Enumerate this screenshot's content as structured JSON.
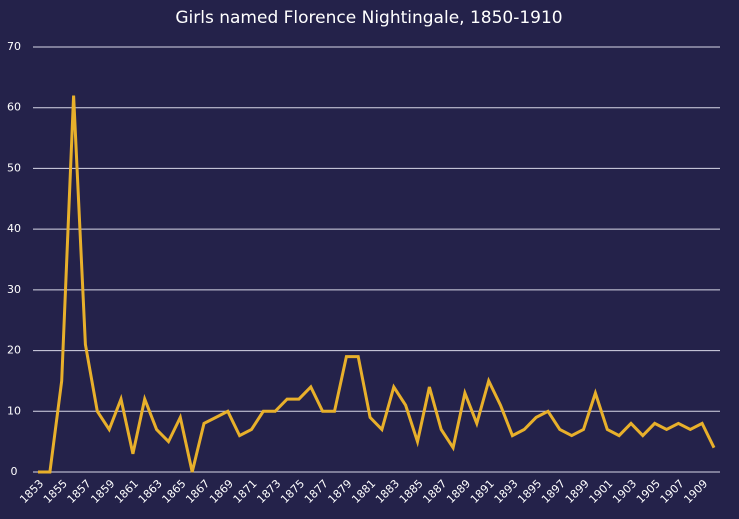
{
  "chart_data": {
    "type": "line",
    "title": "Girls named Florence Nightingale, 1850-1910",
    "x": [
      1853,
      1854,
      1855,
      1856,
      1857,
      1858,
      1859,
      1860,
      1861,
      1862,
      1863,
      1864,
      1865,
      1866,
      1867,
      1868,
      1869,
      1870,
      1871,
      1872,
      1873,
      1874,
      1875,
      1876,
      1877,
      1878,
      1879,
      1880,
      1881,
      1882,
      1883,
      1884,
      1885,
      1886,
      1887,
      1888,
      1889,
      1890,
      1891,
      1892,
      1893,
      1894,
      1895,
      1896,
      1897,
      1898,
      1899,
      1900,
      1901,
      1902,
      1903,
      1904,
      1905,
      1906,
      1907,
      1908,
      1909,
      1910
    ],
    "series": [
      {
        "color": "#e8b02b",
        "values": [
          0,
          0,
          15,
          62,
          21,
          10,
          7,
          12,
          3,
          12,
          7,
          5,
          9,
          0,
          8,
          9,
          10,
          6,
          7,
          10,
          10,
          12,
          12,
          14,
          10,
          10,
          19,
          19,
          9,
          7,
          14,
          11,
          5,
          14,
          7,
          4,
          13,
          8,
          15,
          11,
          6,
          7,
          9,
          10,
          7,
          6,
          7,
          13,
          7,
          6,
          8,
          6,
          8,
          7,
          8,
          7,
          8,
          4
        ]
      }
    ],
    "xlim": [
      1853,
      1910
    ],
    "xticks": [
      1853,
      1855,
      1857,
      1859,
      1861,
      1863,
      1865,
      1867,
      1869,
      1871,
      1873,
      1875,
      1877,
      1879,
      1881,
      1883,
      1885,
      1887,
      1889,
      1891,
      1893,
      1895,
      1897,
      1899,
      1901,
      1903,
      1905,
      1907,
      1909
    ],
    "ylim": [
      0,
      70
    ],
    "yticks": [
      0,
      10,
      20,
      30,
      40,
      50,
      60,
      70
    ],
    "grid": true
  }
}
